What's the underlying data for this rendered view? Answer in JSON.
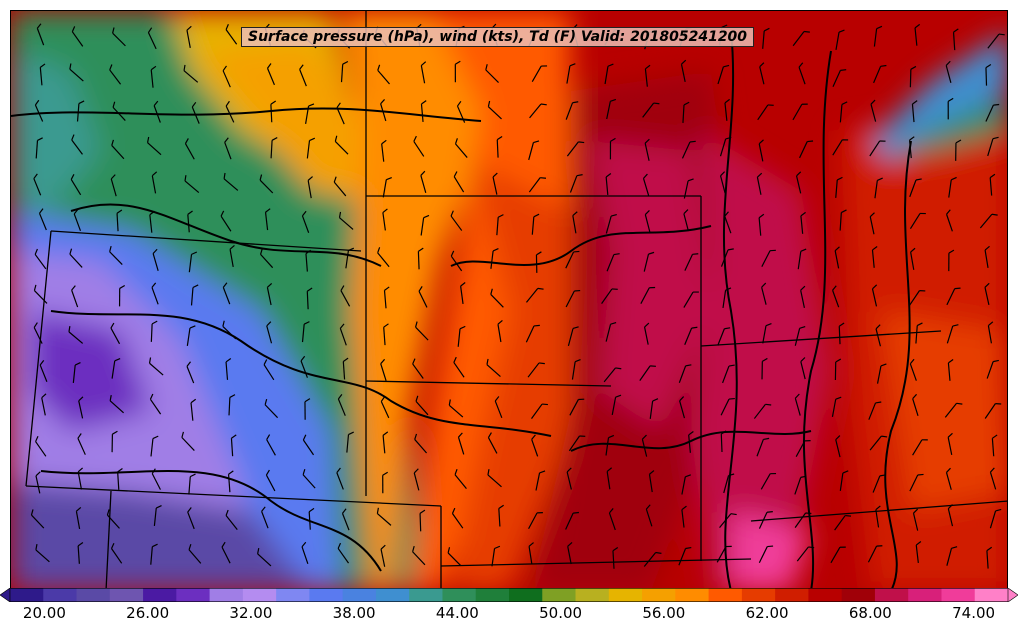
{
  "map": {
    "title": "Surface pressure (hPa), wind (kts), Td (F) Valid: 201805241200"
  },
  "colorbar": {
    "tick_labels": [
      "20.00",
      "26.00",
      "32.00",
      "38.00",
      "44.00",
      "50.00",
      "56.00",
      "62.00",
      "68.00",
      "74.00"
    ],
    "min": 18,
    "max": 76,
    "step": 2,
    "colors": [
      "#2e1a8a",
      "#4b3aa8",
      "#5a4aa6",
      "#6e55b0",
      "#4b1aa3",
      "#6c2fc0",
      "#a07ee6",
      "#b48cf0",
      "#7f87f2",
      "#5a7af0",
      "#4a82e0",
      "#3f8fd0",
      "#3a9a90",
      "#2f8f5a",
      "#1f7f3a",
      "#0f6e1e",
      "#7fa024",
      "#b8b020",
      "#e6b400",
      "#f5a000",
      "#ff8c00",
      "#ff5a00",
      "#e63c00",
      "#d01e00",
      "#b80000",
      "#a00008",
      "#c0104a",
      "#d8207a",
      "#f03c9a",
      "#ff80c8"
    ]
  }
}
